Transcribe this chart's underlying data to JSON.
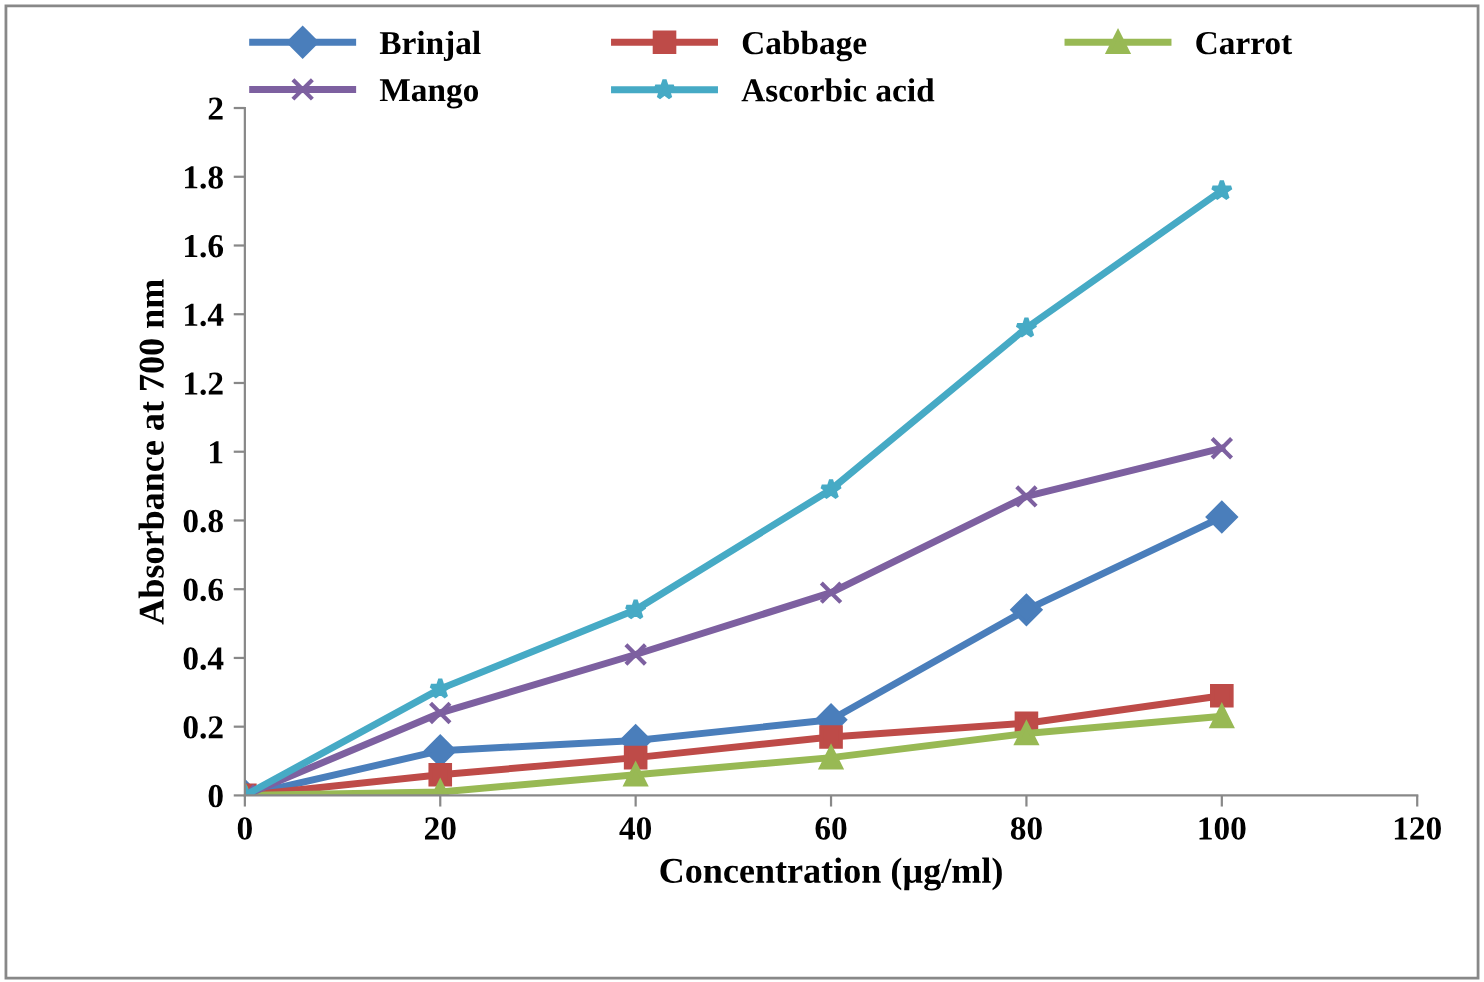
{
  "chart_data": {
    "type": "line",
    "xlabel": "Concentration (µg/ml)",
    "ylabel": "Absorbance at 700 nm",
    "x": [
      0,
      20,
      40,
      60,
      80,
      100
    ],
    "series": [
      {
        "name": "Brinjal",
        "color": "#4a7ebb",
        "marker": "diamond",
        "values": [
          0,
          0.13,
          0.16,
          0.22,
          0.54,
          0.81
        ]
      },
      {
        "name": "Cabbage",
        "color": "#be4b48",
        "marker": "square",
        "values": [
          0,
          0.06,
          0.11,
          0.17,
          0.21,
          0.29
        ]
      },
      {
        "name": "Carrot",
        "color": "#98b954",
        "marker": "triangle",
        "values": [
          0,
          0.01,
          0.06,
          0.11,
          0.18,
          0.23
        ]
      },
      {
        "name": "Mango",
        "color": "#7d60a0",
        "marker": "cross",
        "values": [
          0,
          0.24,
          0.41,
          0.59,
          0.87,
          1.01
        ]
      },
      {
        "name": "Ascorbic acid",
        "color": "#46aac5",
        "marker": "star",
        "values": [
          0,
          0.31,
          0.54,
          0.89,
          1.36,
          1.76
        ]
      }
    ],
    "xlim": [
      0,
      120
    ],
    "xticks": [
      0,
      20,
      40,
      60,
      80,
      100,
      120
    ],
    "ylim": [
      0,
      2
    ],
    "yticks": [
      0,
      0.2,
      0.4,
      0.6,
      0.8,
      1,
      1.2,
      1.4,
      1.6,
      1.8,
      2
    ],
    "grid": false,
    "legend": "top",
    "line_style": "solid"
  }
}
